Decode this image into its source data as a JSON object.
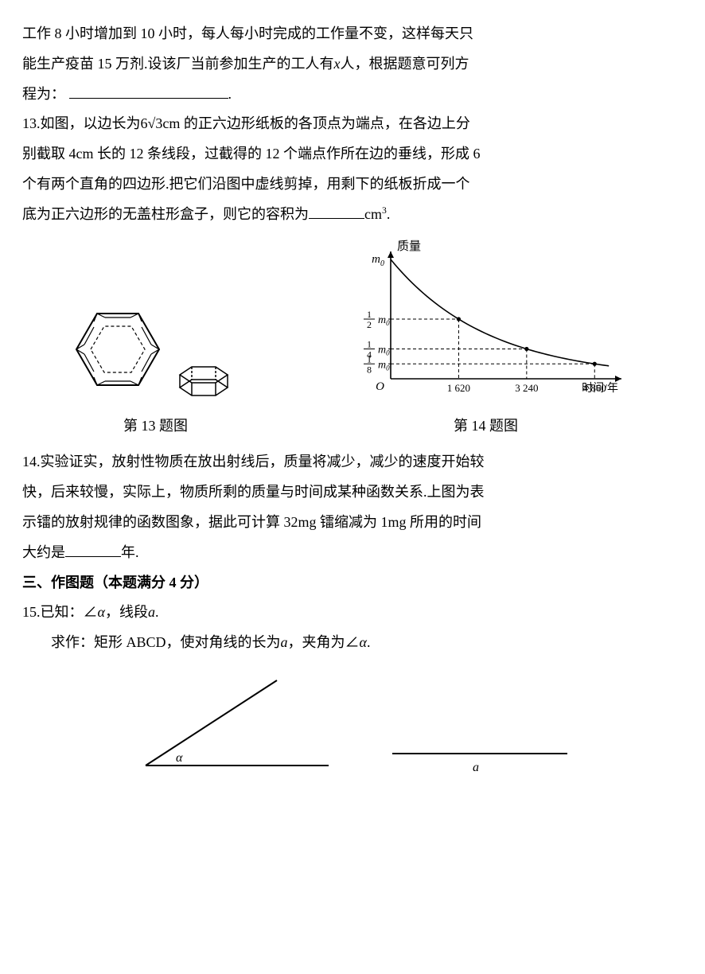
{
  "q12_cont": {
    "line1": "工作 8 小时增加到 10 小时，每人每小时完成的工作量不变，这样每天只",
    "line2_a": "能生产疫苗 15 万剂.设该厂当前参加生产的工人有",
    "line2_var": "x",
    "line2_b": "人，根据题意可列方",
    "line3": "程为：",
    "period": "."
  },
  "q13": {
    "num": "13.",
    "text_a": "如图，以边长为",
    "side": "6√3",
    "unit1": "cm 的正六边形纸板的各顶点为端点，在各边上分",
    "text_b": "别截取 4cm 长的 12 条线段，过截得的 12 个端点作所在边的垂线，形成 6",
    "text_c": "个有两个直角的四边形.把它们沿图中虚线剪掉，用剩下的纸板折成一个",
    "text_d": "底为正六边形的无盖柱形盒子，则它的容积为",
    "unit2": "cm",
    "sup": "3",
    "period": "."
  },
  "fig13_label": "第 13 题图",
  "fig14_label": "第 14 题图",
  "chart14": {
    "ylabel": "质量",
    "xlabel": "时间/年",
    "y_top": "m",
    "y_sub": "0",
    "y_ticks": [
      {
        "frac_num": "1",
        "frac_den": "2",
        "m": "m",
        "sub": "0"
      },
      {
        "frac_num": "1",
        "frac_den": "4",
        "m": "m",
        "sub": "0"
      },
      {
        "frac_num": "1",
        "frac_den": "8",
        "m": "m",
        "sub": "0"
      }
    ],
    "origin": "O",
    "x_ticks": [
      "1 620",
      "3 240",
      "4 860"
    ],
    "colors": {
      "axis": "#000000",
      "curve": "#000000",
      "dash": "#000000",
      "bg": "#ffffff"
    },
    "curve_points": [
      {
        "x": 0,
        "y": 1.0
      },
      {
        "x": 1620,
        "y": 0.5
      },
      {
        "x": 3240,
        "y": 0.25
      },
      {
        "x": 4860,
        "y": 0.125
      }
    ],
    "xlim": [
      0,
      5500
    ],
    "line_width": 1.6
  },
  "q14": {
    "num": "14.",
    "text_a": "实验证实，放射性物质在放出射线后，质量将减少，减少的速度开始较",
    "text_b": "快，后来较慢，实际上，物质所剩的质量与时间成某种函数关系.上图为表",
    "text_c": "示镭的放射规律的函数图象，据此可计算 32mg 镭缩减为 1mg 所用的时间",
    "text_d": "大约是",
    "tail": "年."
  },
  "section3": "三、作图题（本题满分 4 分）",
  "q15": {
    "num": "15.",
    "given_a": "已知：∠",
    "alpha1": "α",
    "given_b": "，线段",
    "a1": "a",
    "given_c": ".",
    "ask_a": "求作：矩形 ABCD，使对角线的长为",
    "a2": "a",
    "ask_b": "，夹角为∠",
    "alpha2": "α",
    "ask_c": "."
  },
  "fig15": {
    "angle_label": "α",
    "segment_label": "a",
    "line_color": "#000000"
  }
}
